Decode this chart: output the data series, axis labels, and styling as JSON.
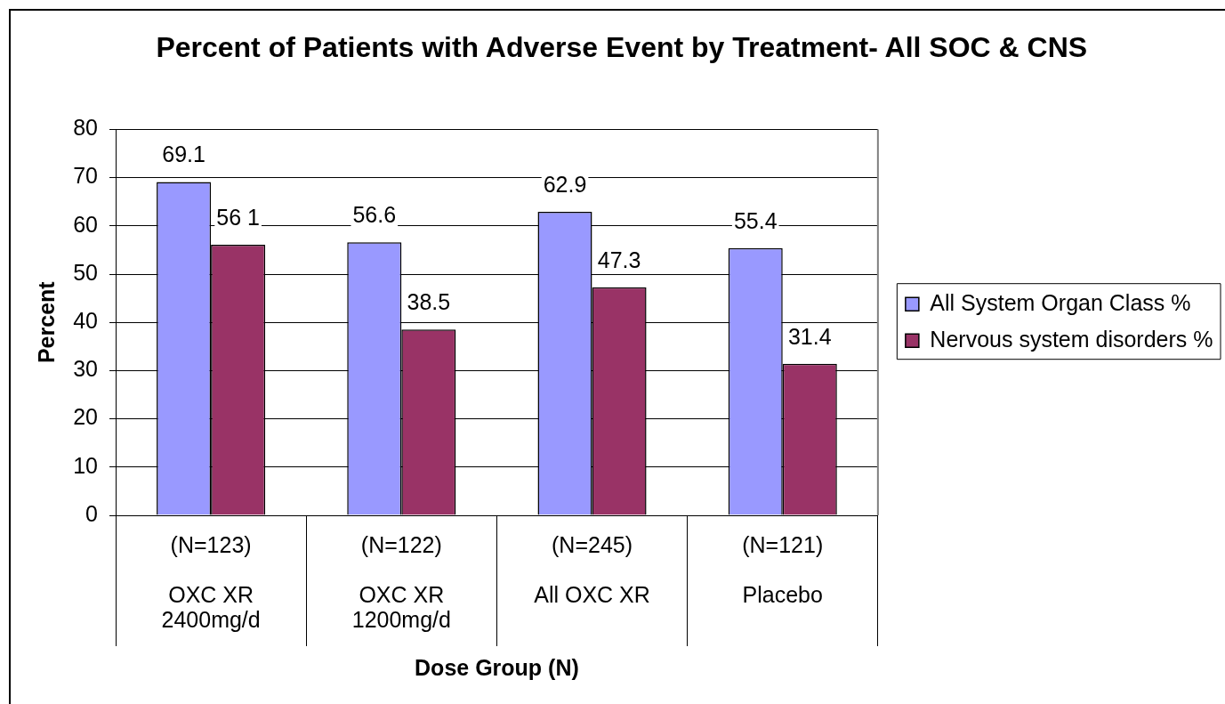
{
  "chart_data": {
    "type": "bar",
    "title": "Percent of Patients with Adverse Event by Treatment- All SOC & CNS",
    "xlabel": "Dose Group (N)",
    "ylabel": "Percent",
    "categories": [
      "(N=123)\nOXC XR\n2400mg/d",
      "(N=122)\nOXC XR\n1200mg/d",
      "(N=245)\nAll OXC XR",
      "(N=121)\nPlacebo"
    ],
    "series": [
      {
        "name": "All System Organ Class %",
        "color": "#9999ff",
        "values": [
          69.1,
          56.6,
          62.9,
          55.4
        ],
        "value_labels": [
          "69.1",
          "56.6",
          "62.9",
          "55.4"
        ]
      },
      {
        "name": "Nervous system disorders %",
        "color": "#993366",
        "values": [
          56.1,
          38.5,
          47.3,
          31.4
        ],
        "value_labels": [
          "56 1",
          "38.5",
          "47.3",
          "31.4"
        ]
      }
    ],
    "ylim": [
      0,
      80
    ],
    "yticks": [
      0,
      10,
      20,
      30,
      40,
      50,
      60,
      70,
      80
    ],
    "grid": "y",
    "legend": "right"
  }
}
